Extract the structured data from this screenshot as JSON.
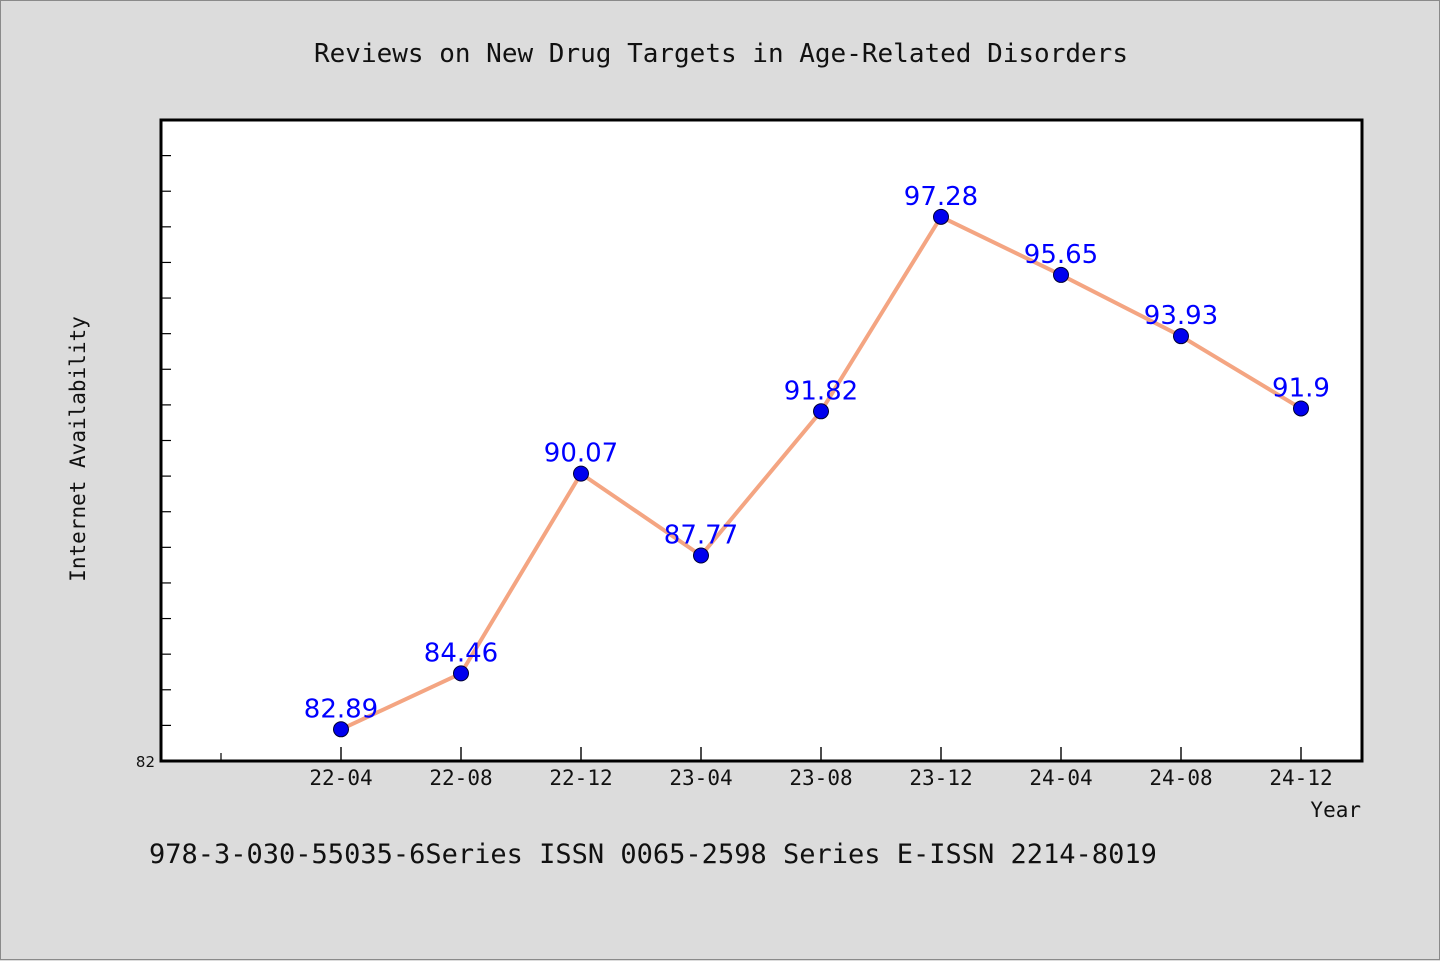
{
  "chart_data": {
    "type": "line",
    "title": "Reviews on New Drug Targets in Age-Related Disorders",
    "xlabel": "Year",
    "ylabel": "Internet Availability",
    "categories": [
      "22-04",
      "22-08",
      "22-12",
      "23-04",
      "23-08",
      "23-12",
      "24-04",
      "24-08",
      "24-12"
    ],
    "series": [
      {
        "values": [
          82.89,
          84.46,
          90.07,
          87.77,
          91.82,
          97.28,
          95.65,
          93.93,
          91.9
        ],
        "labels": [
          "82.89",
          "84.46",
          "90.07",
          "87.77",
          "91.82",
          "97.28",
          "95.65",
          "93.93",
          "91.9"
        ]
      }
    ],
    "y_tick_labels": [
      "82"
    ],
    "ylim": [
      82,
      100
    ],
    "grid": false,
    "legend": "none"
  },
  "footer_text": "978-3-030-55035-6Series ISSN 0065-2598 Series E-ISSN 2214-8019",
  "colors": {
    "line": "#f4a582",
    "marker": "#0000ee",
    "label": "#0000ff",
    "background": "#dcdcdc",
    "plot_background": "#ffffff"
  }
}
